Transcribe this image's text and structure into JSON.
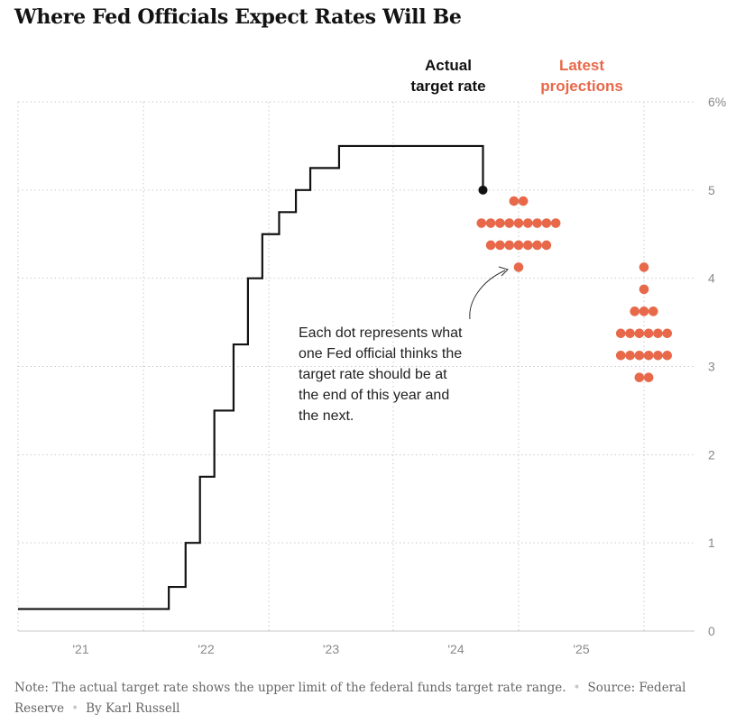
{
  "title": "Where Fed Officials Expect Rates Will Be",
  "chart_data": {
    "type": "line",
    "title": "Where Fed Officials Expect Rates Will Be",
    "xlabel": "",
    "ylabel": "",
    "ylim": [
      0,
      6
    ],
    "y_ticks": [
      "0",
      "1",
      "2",
      "3",
      "4",
      "5",
      "6%"
    ],
    "x_ticks": [
      "'21",
      "'22",
      "'23",
      "'24",
      "'25"
    ],
    "grid": true,
    "series": [
      {
        "name": "Actual target rate",
        "color": "#121212",
        "points": [
          [
            "2021-01-01",
            0.25
          ],
          [
            "2022-03-16",
            0.25
          ],
          [
            "2022-03-17",
            0.5
          ],
          [
            "2022-05-04",
            0.5
          ],
          [
            "2022-05-05",
            1.0
          ],
          [
            "2022-06-15",
            1.0
          ],
          [
            "2022-06-16",
            1.75
          ],
          [
            "2022-07-27",
            1.75
          ],
          [
            "2022-07-28",
            2.5
          ],
          [
            "2022-09-21",
            2.5
          ],
          [
            "2022-09-22",
            3.25
          ],
          [
            "2022-11-02",
            3.25
          ],
          [
            "2022-11-03",
            4.0
          ],
          [
            "2022-12-14",
            4.0
          ],
          [
            "2022-12-15",
            4.5
          ],
          [
            "2023-02-01",
            4.5
          ],
          [
            "2023-02-02",
            4.75
          ],
          [
            "2023-03-22",
            4.75
          ],
          [
            "2023-03-23",
            5.0
          ],
          [
            "2023-05-03",
            5.0
          ],
          [
            "2023-05-04",
            5.25
          ],
          [
            "2023-07-26",
            5.25
          ],
          [
            "2023-07-27",
            5.5
          ],
          [
            "2024-09-18",
            5.5
          ],
          [
            "2024-09-19",
            5.0
          ]
        ]
      },
      {
        "name": "Latest projections",
        "color": "#e8684a",
        "type": "dot-plot",
        "points": [
          {
            "x": "end of 2024",
            "y": 4.875,
            "count": 2
          },
          {
            "x": "end of 2024",
            "y": 4.625,
            "count": 9
          },
          {
            "x": "end of 2024",
            "y": 4.375,
            "count": 7
          },
          {
            "x": "end of 2024",
            "y": 4.125,
            "count": 1
          },
          {
            "x": "end of 2025",
            "y": 4.125,
            "count": 1
          },
          {
            "x": "end of 2025",
            "y": 3.875,
            "count": 1
          },
          {
            "x": "end of 2025",
            "y": 3.625,
            "count": 3
          },
          {
            "x": "end of 2025",
            "y": 3.375,
            "count": 6
          },
          {
            "x": "end of 2025",
            "y": 3.125,
            "count": 6
          },
          {
            "x": "end of 2025",
            "y": 2.875,
            "count": 2
          }
        ]
      }
    ],
    "labels": {
      "actual_line1": "Actual",
      "actual_line2": "target rate",
      "projections_line1": "Latest",
      "projections_line2": "projections"
    },
    "annotation": [
      "Each dot represents what",
      "one Fed official thinks the",
      "target rate should be at",
      "the end of this year and",
      "the next."
    ],
    "colors": {
      "actual": "#121212",
      "projection": "#e8684a",
      "grid": "#cccccc"
    }
  },
  "footer": {
    "note": "Note: The actual target rate shows the upper limit of the federal funds target rate range.",
    "source": "Source: Federal Reserve",
    "byline": "By Karl Russell"
  }
}
